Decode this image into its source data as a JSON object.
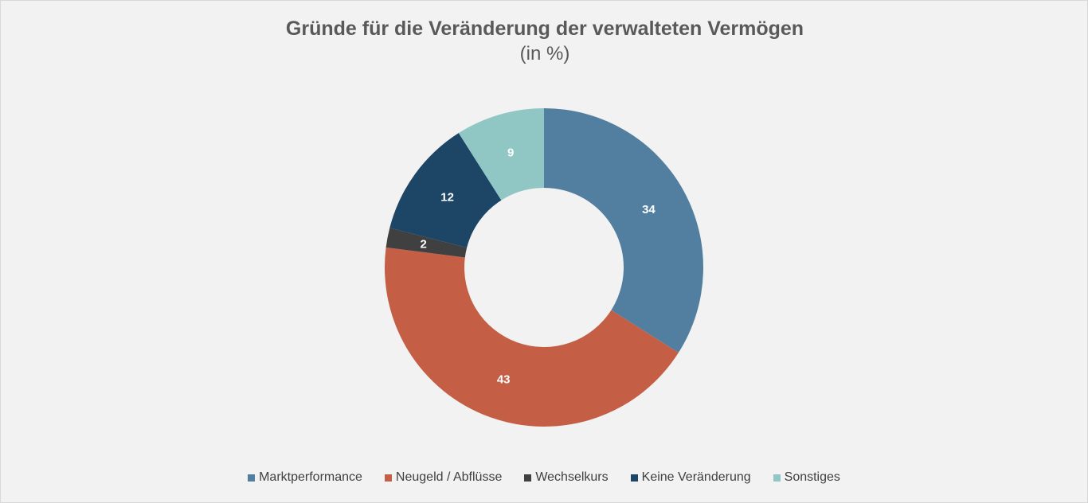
{
  "chart_data": {
    "type": "pie",
    "title": "Gründe für die Veränderung der verwalteten Vermögen",
    "subtitle": "(in %)",
    "donut": true,
    "legend_position": "bottom",
    "categories": [
      "Marktperformance",
      "Neugeld / Abflüsse",
      "Wechselkurs",
      "Keine Veränderung",
      "Sonstiges"
    ],
    "values": [
      34,
      43,
      2,
      12,
      9
    ],
    "colors": [
      "#527fa0",
      "#c45f45",
      "#404040",
      "#1d4566",
      "#90c6c4"
    ]
  }
}
